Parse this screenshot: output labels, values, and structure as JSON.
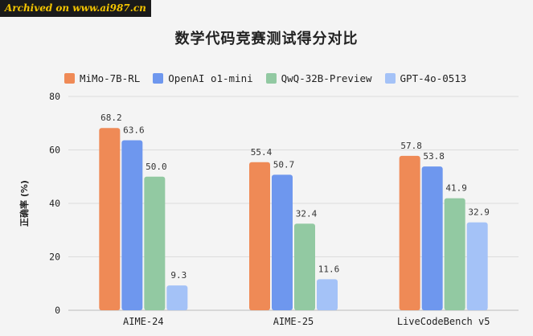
{
  "watermark": "Archived on www.ai987.cn",
  "chart_data": {
    "type": "bar",
    "title": "数学代码竞赛测试得分对比",
    "ylabel": "正确率 (%)",
    "xlabel": "",
    "ylim": [
      0,
      80
    ],
    "yticks": [
      0,
      20,
      40,
      60,
      80
    ],
    "grid": true,
    "legend": "top",
    "categories": [
      "AIME-24",
      "AIME-25",
      "LiveCodeBench v5"
    ],
    "series": [
      {
        "name": "MiMo-7B-RL",
        "color": "#ef8a56",
        "values": [
          68.2,
          55.4,
          57.8
        ],
        "labels": [
          "68.2",
          "55.4",
          "57.8"
        ]
      },
      {
        "name": "OpenAI o1-mini",
        "color": "#6e97ee",
        "values": [
          63.6,
          50.7,
          53.8
        ],
        "labels": [
          "63.6",
          "50.7",
          "53.8"
        ]
      },
      {
        "name": "QwQ-32B-Preview",
        "color": "#92c9a2",
        "values": [
          50.0,
          32.4,
          41.9
        ],
        "labels": [
          "50.0",
          "32.4",
          "41.9"
        ]
      },
      {
        "name": "GPT-4o-0513",
        "color": "#a4c2f7",
        "values": [
          9.3,
          11.6,
          32.9
        ],
        "labels": [
          "9.3",
          "11.6",
          "32.9"
        ]
      }
    ]
  }
}
